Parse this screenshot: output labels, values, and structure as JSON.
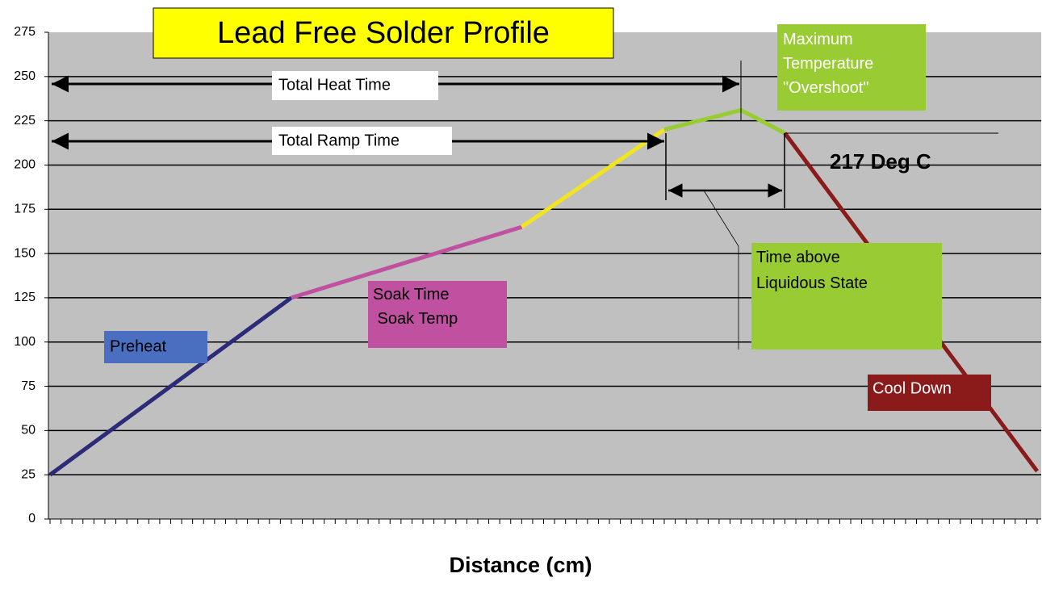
{
  "chart_data": {
    "type": "line",
    "title": "Lead Free Solder Profile",
    "x_label": "Distance (cm)",
    "ylim": [
      0,
      275
    ],
    "yticks": [
      0,
      25,
      50,
      75,
      100,
      125,
      150,
      175,
      200,
      225,
      250,
      275
    ],
    "xlim": [
      0,
      90
    ],
    "xticks": [
      0,
      1,
      2,
      3,
      4,
      5,
      6,
      7,
      8,
      9,
      10,
      11,
      12,
      13,
      14,
      15,
      16,
      17,
      18,
      19,
      20,
      21,
      22,
      23,
      24,
      25,
      26,
      27,
      28,
      29,
      30,
      31,
      32,
      33,
      34,
      35,
      36,
      37,
      38,
      39,
      40,
      41,
      42,
      43,
      44,
      45,
      46,
      47,
      48,
      49,
      50,
      51,
      52,
      53,
      54,
      55,
      56,
      57,
      58,
      59,
      60,
      61,
      62,
      63,
      64,
      65,
      66,
      67,
      68,
      69,
      70,
      71,
      72,
      73,
      74,
      75,
      76,
      77,
      78,
      79,
      80,
      81,
      82,
      83,
      84,
      85,
      86,
      87,
      88,
      89,
      90
    ],
    "grid": true,
    "series": [
      {
        "color": "#2b2b7a",
        "x": [
          0,
          22
        ],
        "values": [
          25,
          125
        ]
      },
      {
        "color": "#c050a0",
        "x": [
          22,
          43
        ],
        "values": [
          125,
          165
        ]
      },
      {
        "color": "#f2e51e",
        "x": [
          43,
          56
        ],
        "values": [
          165,
          220
        ]
      },
      {
        "color": "#99cc33",
        "x": [
          56,
          63,
          67
        ],
        "values": [
          220,
          231,
          218
        ]
      },
      {
        "color": "#8b1a1a",
        "x": [
          67,
          90
        ],
        "values": [
          218,
          27
        ]
      }
    ],
    "annotations": {
      "total_heat": "Total Heat Time",
      "total_ramp": "Total Ramp Time",
      "overshoot": [
        "Maximum",
        "Temperature",
        "\"Overshoot\""
      ],
      "liquidus": "217 Deg C",
      "time_above": [
        "Time above",
        "Liquidous State"
      ],
      "preheat": "Preheat",
      "soak": [
        "Soak Time",
        " Soak Temp"
      ],
      "cool": "Cool Down"
    }
  }
}
